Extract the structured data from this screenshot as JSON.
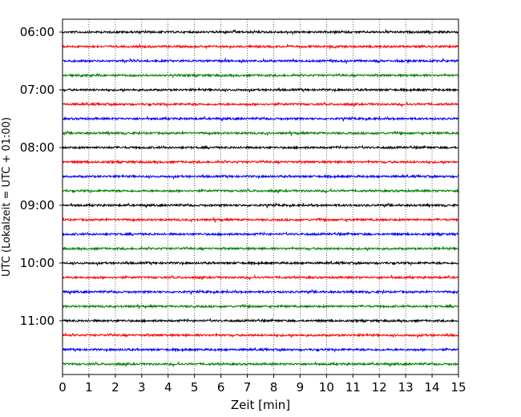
{
  "chart_data": {
    "type": "line",
    "title": "",
    "xlabel": "Zeit  [min]",
    "ylabel": "UTC (Lokalzeit = UTC + 01:00)",
    "xlim": [
      0,
      15
    ],
    "x_ticks": [
      "0",
      "1",
      "2",
      "3",
      "4",
      "5",
      "6",
      "7",
      "8",
      "9",
      "10",
      "11",
      "12",
      "13",
      "14",
      "15"
    ],
    "y_tick_labels": [
      "06:00",
      "07:00",
      "08:00",
      "09:00",
      "10:00",
      "11:00"
    ],
    "grid": "vertical dotted at each minute",
    "trace_colors": [
      "#000000",
      "#ff0000",
      "#0000ff",
      "#008000"
    ],
    "row_start_times": [
      "06:00",
      "06:15",
      "06:30",
      "06:45",
      "07:00",
      "07:15",
      "07:30",
      "07:45",
      "08:00",
      "08:15",
      "08:30",
      "08:45",
      "09:00",
      "09:15",
      "09:30",
      "09:45",
      "10:00",
      "10:15",
      "10:30",
      "10:45",
      "11:00",
      "11:15",
      "11:30",
      "11:45"
    ],
    "row_duration_min": 15
  }
}
